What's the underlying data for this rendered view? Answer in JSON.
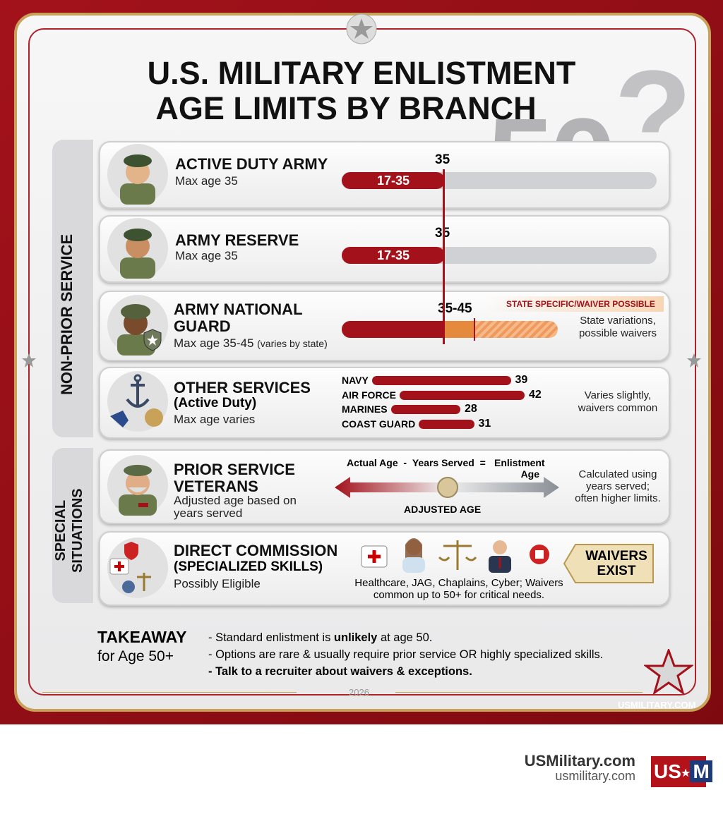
{
  "header": {
    "title_line1": "U.S. MILITARY ENLISTMENT",
    "title_line2": "AGE LIMITS BY BRANCH",
    "big_number": "50",
    "question_mark": "?"
  },
  "side_labels": {
    "non_prior": "NON-PRIOR SERVICE",
    "special_line1": "SPECIAL",
    "special_line2": "SITUATIONS"
  },
  "rows": [
    {
      "title": "ACTIVE DUTY ARMY",
      "subtitle": "Max age 35",
      "range": "17-35",
      "marker": "35"
    },
    {
      "title": "ARMY RESERVE",
      "subtitle": "Max age 35",
      "range": "17-35",
      "marker": "35"
    },
    {
      "title_line1": "ARMY NATIONAL",
      "title_line2": "GUARD",
      "subtitle": "Max age 35-45",
      "subtitle_note": "(varies by state)",
      "marker": "35-45",
      "tag": "STATE SPECIFIC/WAIVER POSSIBLE",
      "side_line1": "State variations,",
      "side_line2": "possible waivers"
    }
  ],
  "other_services": {
    "title_line1": "OTHER SERVICES",
    "title_line2": "(Active Duty)",
    "subtitle": "Max age varies",
    "branches": [
      {
        "name": "NAVY",
        "value": 39
      },
      {
        "name": "AIR FORCE",
        "value": 42
      },
      {
        "name": "MARINES",
        "value": 28
      },
      {
        "name": "COAST GUARD",
        "value": 31
      }
    ],
    "side_line1": "Varies slightly,",
    "side_line2": "waivers common"
  },
  "prior_service": {
    "title_line1": "PRIOR SERVICE",
    "title_line2": "VETERANS",
    "subtitle_line1": "Adjusted age based on",
    "subtitle_line2": "years served",
    "formula": {
      "a": "Actual Age",
      "minus": "-",
      "b": "Years Served",
      "equals": "=",
      "c_line1": "Enlistment",
      "c_line2": "Age"
    },
    "slider_label": "ADJUSTED AGE",
    "side_line1": "Calculated using",
    "side_line2": "years served;",
    "side_line3": "often higher limits."
  },
  "direct_commission": {
    "title_line1": "DIRECT COMMISSION",
    "title_line2": "(SPECIALIZED SKILLS)",
    "subtitle": "Possibly Eligible",
    "caption_line1": "Healthcare, JAG, Chaplains, Cyber; Waivers",
    "caption_line2": "common up to 50+ for critical needs.",
    "badge_line1": "WAIVERS",
    "badge_line2": "EXIST"
  },
  "takeaway": {
    "title": "TAKEAWAY",
    "subtitle": "for Age 50+",
    "bullet1": {
      "before": "- Standard enlistment is ",
      "bold": "unlikely",
      "after": " at age 50."
    },
    "bullet2": "- Options are rare & usually require prior service OR highly specialized skills.",
    "bullet3": "- Talk to a recruiter about waivers & exceptions."
  },
  "footer": {
    "year": "2026",
    "brand": "USMILITARY.COM"
  },
  "bottom": {
    "site_title": "USMilitary.com",
    "site_url": "usmilitary.com",
    "logo_left": "US",
    "logo_right": "M"
  }
}
